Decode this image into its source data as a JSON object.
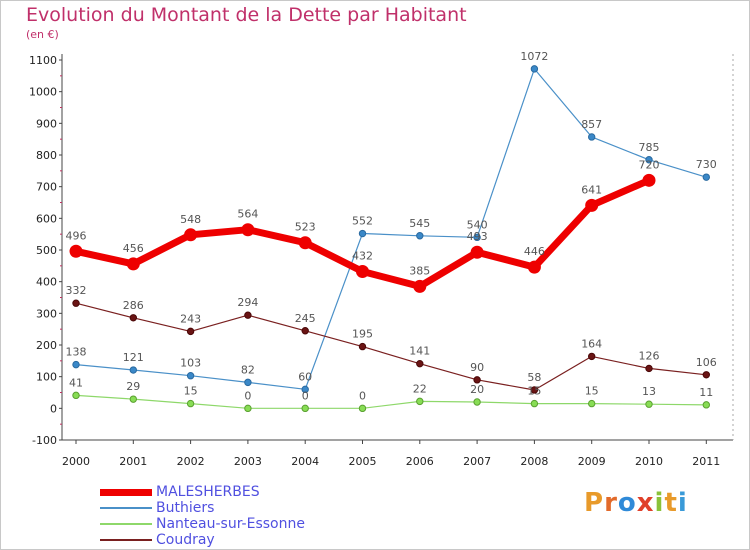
{
  "title": "Evolution du Montant de la Dette par Habitant",
  "unit": "(en €)",
  "logo": {
    "text": "Proxiti",
    "letters": [
      "P",
      "r",
      "o",
      "x",
      "i",
      "t",
      "i"
    ],
    "colors": [
      "#e89a2a",
      "#e26a2a",
      "#2f8ad8",
      "#e0402a",
      "#8ac23a",
      "#e89a2a",
      "#3a9ad8"
    ]
  },
  "chart_data": {
    "type": "line",
    "title": "Evolution du Montant de la Dette par Habitant",
    "ylabel": "(en €)",
    "xlabel": "",
    "x": [
      "2000",
      "2001",
      "2002",
      "2003",
      "2004",
      "2005",
      "2006",
      "2007",
      "2008",
      "2009",
      "2010",
      "2011"
    ],
    "ylim": [
      -100,
      1100
    ],
    "yticks": [
      "-100",
      "0",
      "100",
      "200",
      "300",
      "400",
      "500",
      "600",
      "700",
      "800",
      "900",
      "1000",
      "1100"
    ],
    "grid": false,
    "legend": "bottom-left",
    "series": [
      {
        "name": "MALESHERBES",
        "color": "#ee0000",
        "values": [
          496,
          456,
          548,
          564,
          523,
          432,
          385,
          493,
          446,
          641,
          720,
          null
        ]
      },
      {
        "name": "Buthiers",
        "color": "#4a90c8",
        "values": [
          138,
          121,
          103,
          82,
          60,
          552,
          545,
          540,
          1072,
          857,
          785,
          730
        ]
      },
      {
        "name": "Nanteau-sur-Essonne",
        "color": "#8ed86a",
        "values": [
          41,
          29,
          15,
          0,
          0,
          0,
          22,
          20,
          15,
          15,
          13,
          11
        ]
      },
      {
        "name": "Coudray",
        "color": "#7a2020",
        "values": [
          332,
          286,
          243,
          294,
          245,
          195,
          141,
          90,
          58,
          164,
          126,
          106
        ]
      }
    ]
  }
}
